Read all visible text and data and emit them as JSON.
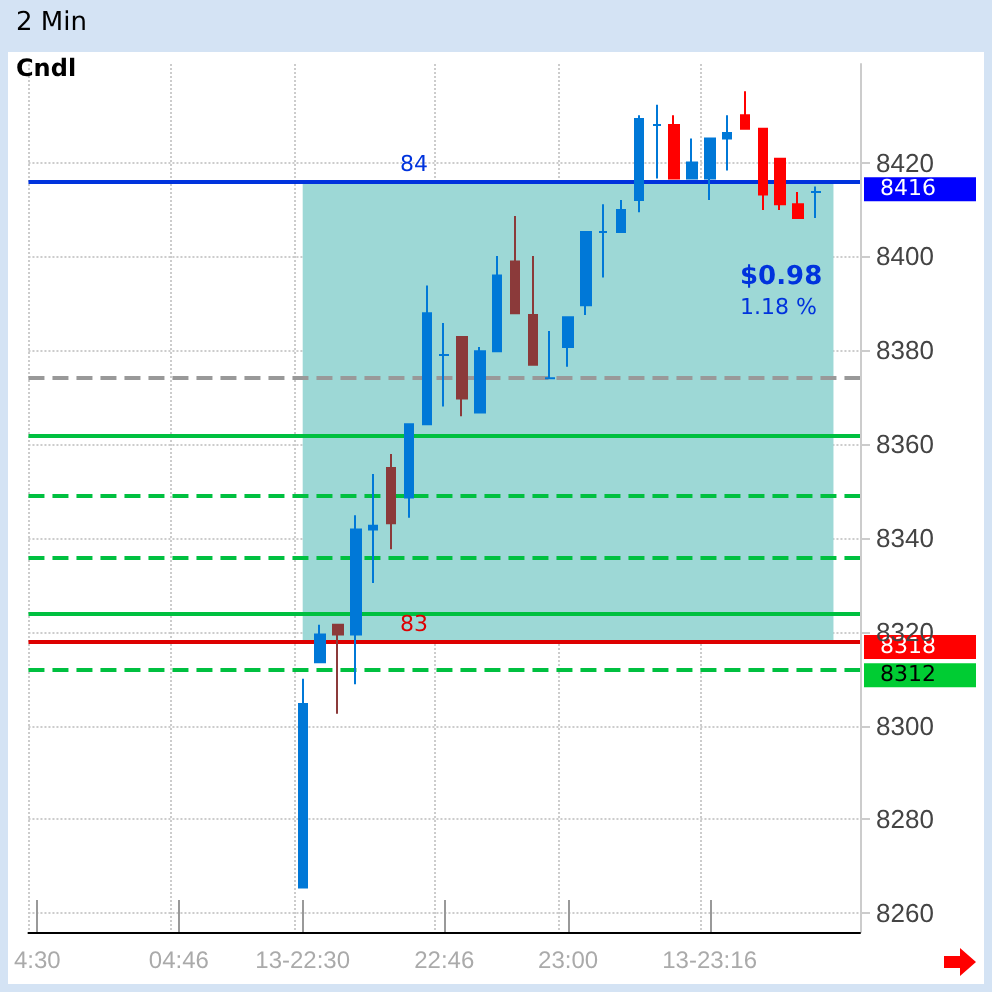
{
  "chart_data": {
    "type": "candlestick",
    "title": "2 Min",
    "categories": [
      "4:30",
      null,
      null,
      null,
      null,
      null,
      null,
      null,
      "04:46",
      null,
      null,
      null,
      null,
      null,
      null,
      "13-22:30",
      null,
      null,
      null,
      null,
      null,
      null,
      null,
      "22:46",
      null,
      null,
      null,
      null,
      null,
      null,
      "23:00",
      null,
      null,
      null,
      null,
      null,
      null,
      null,
      "13-23:16",
      null,
      null,
      null,
      null,
      null,
      null,
      null,
      null
    ],
    "ohlc": [
      null,
      null,
      null,
      null,
      null,
      null,
      null,
      null,
      null,
      null,
      null,
      null,
      null,
      null,
      null,
      [
        8265.5,
        8310,
        8265.3,
        8304.6
      ],
      [
        8313.5,
        8321.5,
        8313.5,
        8319.4
      ],
      [
        8321.5,
        8321.5,
        8302.5,
        8319.4
      ],
      [
        8319.4,
        8344.8,
        8308.8,
        8341.8
      ],
      [
        8341.8,
        8353.6,
        8330.4,
        8342.6
      ],
      [
        8354.9,
        8357.9,
        8337.6,
        8343.1
      ],
      [
        8348.6,
        8364.2,
        8344.3,
        8364.2
      ],
      [
        8364.2,
        8393.8,
        8364.2,
        8387.9
      ],
      [
        8379,
        8385.8,
        8368,
        8379
      ],
      [
        8382.8,
        8382.8,
        8365.9,
        8369.7
      ],
      [
        8366.7,
        8380.7,
        8366.7,
        8379.8
      ],
      [
        8379.8,
        8400.1,
        8379.8,
        8395.9
      ],
      [
        8398.9,
        8408.6,
        8387.9,
        8387.9
      ],
      [
        8387.5,
        8400.1,
        8376.9,
        8376.9
      ],
      [
        8374,
        8384.1,
        8373.9,
        8374
      ],
      [
        8380.7,
        8387,
        8376.5,
        8387
      ],
      [
        8389.6,
        8405.2,
        8387.5,
        8405.2
      ],
      [
        8405.2,
        8411.1,
        8395.5,
        8405.2
      ],
      [
        8405.2,
        8412,
        8405.2,
        8409.9
      ],
      [
        8412,
        8430.1,
        8409.4,
        8429.3
      ],
      [
        8428,
        8432.3,
        8416.6,
        8428
      ],
      [
        8428,
        8430.1,
        8416.6,
        8416.6
      ],
      [
        8416.6,
        8425.1,
        8416.6,
        8420
      ],
      [
        8416.6,
        8425.1,
        8412,
        8425.1
      ],
      [
        8425.1,
        8430.1,
        8418.3,
        8426.3
      ],
      [
        8430.1,
        8435.2,
        8427.2,
        8427.2
      ],
      [
        8427.2,
        8427.2,
        8409.9,
        8413.2
      ],
      [
        8420.8,
        8420.8,
        8409.9,
        8411.1
      ],
      [
        8411.1,
        8413.7,
        8408.2,
        8408.2
      ],
      [
        8413.7,
        8414.9,
        8408.2,
        8413.7
      ],
      null,
      null
    ],
    "colors": [
      null,
      null,
      null,
      null,
      null,
      null,
      null,
      null,
      null,
      null,
      null,
      null,
      null,
      null,
      null,
      "#0078d7",
      "#0078d7",
      "#8b3a3a",
      "#0078d7",
      "#0078d7",
      "#8b3a3a",
      "#0078d7",
      "#0078d7",
      "#0078d7",
      "#8b3a3a",
      "#0078d7",
      "#0078d7",
      "#8b3a3a",
      "#8b3a3a",
      "#0078d7",
      "#0078d7",
      "#0078d7",
      "#0078d7",
      "#0078d7",
      "#0078d7",
      "#0078d7",
      "#ff0000",
      "#0078d7",
      "#0078d7",
      "#0078d7",
      "#ff0000",
      "#ff0000",
      "#ff0000",
      "#ff0000",
      "#0078d7",
      null,
      null
    ],
    "ylim": [
      8256,
      8441
    ],
    "yticks": [
      {
        "value": 8260,
        "label": "8260"
      },
      {
        "value": 8280,
        "label": "8280"
      },
      {
        "value": 8300,
        "label": "8300"
      },
      {
        "value": 8320,
        "label": "8320"
      },
      {
        "value": 8340,
        "label": "8340"
      },
      {
        "value": 8360,
        "label": "8360"
      },
      {
        "value": 8380,
        "label": "8380"
      },
      {
        "value": 8400,
        "label": "8400"
      },
      {
        "value": 8420,
        "label": "8420"
      }
    ],
    "grid": true,
    "bands": [
      {
        "axis": "y",
        "from": 8318,
        "to": 8416,
        "color": "#9dd8d6"
      }
    ],
    "ref_lines": [
      {
        "axis": "y",
        "value": 8416,
        "color": "#0033dd",
        "line_style": "solid"
      },
      {
        "axis": "y",
        "value": 8318,
        "color": "#dd0000",
        "line_style": "solid"
      },
      {
        "axis": "y",
        "value": 8324,
        "color": "#00c040",
        "line_style": "solid"
      },
      {
        "axis": "y",
        "value": 8336,
        "color": "#00c040",
        "line_style": "dashed"
      },
      {
        "axis": "y",
        "value": 8312,
        "color": "#00c040",
        "line_style": "dashed"
      },
      {
        "axis": "y",
        "value": 8362,
        "color": "#00c040",
        "line_style": "solid"
      },
      {
        "axis": "y",
        "value": 8349,
        "color": "#00c040",
        "line_style": "dashed"
      },
      {
        "axis": "y",
        "value": 8374,
        "color": "#999999",
        "line_style": "dashed"
      }
    ],
    "annotations": [
      "Cndl",
      "84",
      "83",
      "$0.98",
      "1.18 %",
      "8416",
      "8318",
      "8312"
    ]
  }
}
